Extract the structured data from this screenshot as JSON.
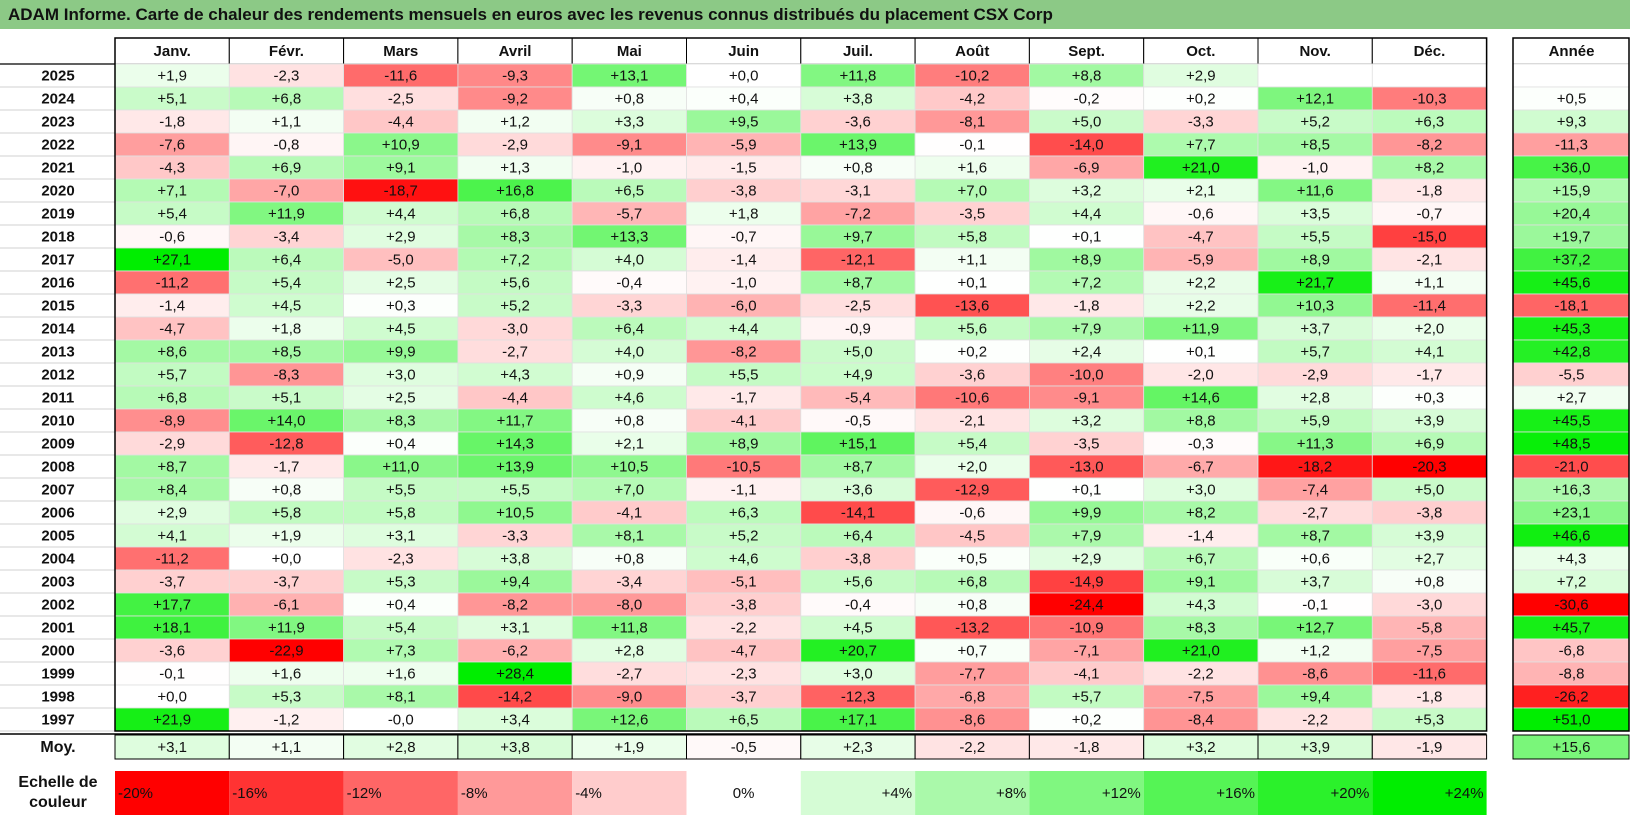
{
  "title": "ADAM Informe. Carte de chaleur des rendements mensuels en euros avec les revenus connus distribués du placement CSX Corp",
  "chart_data": {
    "type": "heatmap",
    "months": [
      "Janv.",
      "Févr.",
      "Mars",
      "Avril",
      "Mai",
      "Juin",
      "Juil.",
      "Août",
      "Sept.",
      "Oct.",
      "Nov.",
      "Déc."
    ],
    "year_header": "Année",
    "avg_label": "Moy.",
    "legend_title": "Echelle de couleur",
    "rows": [
      {
        "year": "2025",
        "values": [
          "+1,9",
          "-2,3",
          "-11,6",
          "-9,3",
          "+13,1",
          "+0,0",
          "+11,8",
          "-10,2",
          "+8,8",
          "+2,9",
          "",
          ""
        ],
        "annual": ""
      },
      {
        "year": "2024",
        "values": [
          "+5,1",
          "+6,8",
          "-2,5",
          "-9,2",
          "+0,8",
          "+0,4",
          "+3,8",
          "-4,2",
          "-0,2",
          "+0,2",
          "+12,1",
          "-10,3"
        ],
        "annual": "+0,5"
      },
      {
        "year": "2023",
        "values": [
          "-1,8",
          "+1,1",
          "-4,4",
          "+1,2",
          "+3,3",
          "+9,5",
          "-3,6",
          "-8,1",
          "+5,0",
          "-3,3",
          "+5,2",
          "+6,3"
        ],
        "annual": "+9,3"
      },
      {
        "year": "2022",
        "values": [
          "-7,6",
          "-0,8",
          "+10,9",
          "-2,9",
          "-9,1",
          "-5,9",
          "+13,9",
          "-0,1",
          "-14,0",
          "+7,7",
          "+8,5",
          "-8,2"
        ],
        "annual": "-11,3"
      },
      {
        "year": "2021",
        "values": [
          "-4,3",
          "+6,9",
          "+9,1",
          "+1,3",
          "-1,0",
          "-1,5",
          "+0,8",
          "+1,6",
          "-6,9",
          "+21,0",
          "-1,0",
          "+8,2"
        ],
        "annual": "+36,0"
      },
      {
        "year": "2020",
        "values": [
          "+7,1",
          "-7,0",
          "-18,7",
          "+16,8",
          "+6,5",
          "-3,8",
          "-3,1",
          "+7,0",
          "+3,2",
          "+2,1",
          "+11,6",
          "-1,8"
        ],
        "annual": "+15,9"
      },
      {
        "year": "2019",
        "values": [
          "+5,4",
          "+11,9",
          "+4,4",
          "+6,8",
          "-5,7",
          "+1,8",
          "-7,2",
          "-3,5",
          "+4,4",
          "-0,6",
          "+3,5",
          "-0,7"
        ],
        "annual": "+20,4"
      },
      {
        "year": "2018",
        "values": [
          "-0,6",
          "-3,4",
          "+2,9",
          "+8,3",
          "+13,3",
          "-0,7",
          "+9,7",
          "+5,8",
          "+0,1",
          "-4,7",
          "+5,5",
          "-15,0"
        ],
        "annual": "+19,7"
      },
      {
        "year": "2017",
        "values": [
          "+27,1",
          "+6,4",
          "-5,0",
          "+7,2",
          "+4,0",
          "-1,4",
          "-12,1",
          "+1,1",
          "+8,9",
          "-5,9",
          "+8,9",
          "-2,1"
        ],
        "annual": "+37,2"
      },
      {
        "year": "2016",
        "values": [
          "-11,2",
          "+5,4",
          "+2,5",
          "+5,6",
          "-0,4",
          "-1,0",
          "+8,7",
          "+0,1",
          "+7,2",
          "+2,2",
          "+21,7",
          "+1,1"
        ],
        "annual": "+45,6"
      },
      {
        "year": "2015",
        "values": [
          "-1,4",
          "+4,5",
          "+0,3",
          "+5,2",
          "-3,3",
          "-6,0",
          "-2,5",
          "-13,6",
          "-1,8",
          "+2,2",
          "+10,3",
          "-11,4"
        ],
        "annual": "-18,1"
      },
      {
        "year": "2014",
        "values": [
          "-4,7",
          "+1,8",
          "+4,5",
          "-3,0",
          "+6,4",
          "+4,4",
          "-0,9",
          "+5,6",
          "+7,9",
          "+11,9",
          "+3,7",
          "+2,0"
        ],
        "annual": "+45,3"
      },
      {
        "year": "2013",
        "values": [
          "+8,6",
          "+8,5",
          "+9,9",
          "-2,7",
          "+4,0",
          "-8,2",
          "+5,0",
          "+0,2",
          "+2,4",
          "+0,1",
          "+5,7",
          "+4,1"
        ],
        "annual": "+42,8"
      },
      {
        "year": "2012",
        "values": [
          "+5,7",
          "-8,3",
          "+3,0",
          "+4,3",
          "+0,9",
          "+5,5",
          "+4,9",
          "-3,6",
          "-10,0",
          "-2,0",
          "-2,9",
          "-1,7"
        ],
        "annual": "-5,5"
      },
      {
        "year": "2011",
        "values": [
          "+6,8",
          "+5,1",
          "+2,5",
          "-4,4",
          "+4,6",
          "-1,7",
          "-5,4",
          "-10,6",
          "-9,1",
          "+14,6",
          "+2,8",
          "+0,3"
        ],
        "annual": "+2,7"
      },
      {
        "year": "2010",
        "values": [
          "-8,9",
          "+14,0",
          "+8,3",
          "+11,7",
          "+0,8",
          "-4,1",
          "-0,5",
          "-2,1",
          "+3,2",
          "+8,8",
          "+5,9",
          "+3,9"
        ],
        "annual": "+45,5"
      },
      {
        "year": "2009",
        "values": [
          "-2,9",
          "-12,8",
          "+0,4",
          "+14,3",
          "+2,1",
          "+8,9",
          "+15,1",
          "+5,4",
          "-3,5",
          "-0,3",
          "+11,3",
          "+6,9"
        ],
        "annual": "+48,5"
      },
      {
        "year": "2008",
        "values": [
          "+8,7",
          "-1,7",
          "+11,0",
          "+13,9",
          "+10,5",
          "-10,5",
          "+8,7",
          "+2,0",
          "-13,0",
          "-6,7",
          "-18,2",
          "-20,3"
        ],
        "annual": "-21,0"
      },
      {
        "year": "2007",
        "values": [
          "+8,4",
          "+0,8",
          "+5,5",
          "+5,5",
          "+7,0",
          "-1,1",
          "+3,6",
          "-12,9",
          "+0,1",
          "+3,0",
          "-7,4",
          "+5,0"
        ],
        "annual": "+16,3"
      },
      {
        "year": "2006",
        "values": [
          "+2,9",
          "+5,8",
          "+5,8",
          "+10,5",
          "-4,1",
          "+6,3",
          "-14,1",
          "-0,6",
          "+9,9",
          "+8,2",
          "-2,7",
          "-3,8"
        ],
        "annual": "+23,1"
      },
      {
        "year": "2005",
        "values": [
          "+4,1",
          "+1,9",
          "+3,1",
          "-3,3",
          "+8,1",
          "+5,2",
          "+6,4",
          "-4,5",
          "+7,9",
          "-1,4",
          "+8,7",
          "+3,9"
        ],
        "annual": "+46,6"
      },
      {
        "year": "2004",
        "values": [
          "-11,2",
          "+0,0",
          "-2,3",
          "+3,8",
          "+0,8",
          "+4,6",
          "-3,8",
          "+0,5",
          "+2,9",
          "+6,7",
          "+0,6",
          "+2,7"
        ],
        "annual": "+4,3"
      },
      {
        "year": "2003",
        "values": [
          "-3,7",
          "-3,7",
          "+5,3",
          "+9,4",
          "-3,4",
          "-5,1",
          "+5,6",
          "+6,8",
          "-14,9",
          "+9,1",
          "+3,7",
          "+0,8"
        ],
        "annual": "+7,2"
      },
      {
        "year": "2002",
        "values": [
          "+17,7",
          "-6,1",
          "+0,4",
          "-8,2",
          "-8,0",
          "-3,8",
          "-0,4",
          "+0,8",
          "-24,4",
          "+4,3",
          "-0,1",
          "-3,0"
        ],
        "annual": "-30,6"
      },
      {
        "year": "2001",
        "values": [
          "+18,1",
          "+11,9",
          "+5,4",
          "+3,1",
          "+11,8",
          "-2,2",
          "+4,5",
          "-13,2",
          "-10,9",
          "+8,3",
          "+12,7",
          "-5,8"
        ],
        "annual": "+45,7"
      },
      {
        "year": "2000",
        "values": [
          "-3,6",
          "-22,9",
          "+7,3",
          "-6,2",
          "+2,8",
          "-4,7",
          "+20,7",
          "+0,7",
          "-7,1",
          "+21,0",
          "+1,2",
          "-7,5"
        ],
        "annual": "-6,8"
      },
      {
        "year": "1999",
        "values": [
          "-0,1",
          "+1,6",
          "+1,6",
          "+28,4",
          "-2,7",
          "-2,3",
          "+3,0",
          "-7,7",
          "-4,1",
          "-2,2",
          "-8,6",
          "-11,6"
        ],
        "annual": "-8,8"
      },
      {
        "year": "1998",
        "values": [
          "+0,0",
          "+5,3",
          "+8,1",
          "-14,2",
          "-9,0",
          "-3,7",
          "-12,3",
          "-6,8",
          "+5,7",
          "-7,5",
          "+9,4",
          "-1,8"
        ],
        "annual": "-26,2"
      },
      {
        "year": "1997",
        "values": [
          "+21,9",
          "-1,2",
          "-0,0",
          "+3,4",
          "+12,6",
          "+6,5",
          "+17,1",
          "-8,6",
          "+0,2",
          "-8,4",
          "-2,2",
          "+5,3"
        ],
        "annual": "+51,0"
      }
    ],
    "averages": [
      "+3,1",
      "+1,1",
      "+2,8",
      "+3,8",
      "+1,9",
      "-0,5",
      "+2,3",
      "-2,2",
      "-1,8",
      "+3,2",
      "+3,9",
      "-1,9"
    ],
    "average_annual": "+15,6",
    "legend": [
      {
        "label": "-20%",
        "value": -20
      },
      {
        "label": "-16%",
        "value": -16
      },
      {
        "label": "-12%",
        "value": -12
      },
      {
        "label": "-8%",
        "value": -8
      },
      {
        "label": "-4%",
        "value": -4
      },
      {
        "label": "0%",
        "value": 0
      },
      {
        "label": "+4%",
        "value": 4
      },
      {
        "label": "+8%",
        "value": 8
      },
      {
        "label": "+12%",
        "value": 12
      },
      {
        "label": "+16%",
        "value": 16
      },
      {
        "label": "+20%",
        "value": 20
      },
      {
        "label": "+24%",
        "value": 24
      }
    ],
    "color_scale": {
      "negative_max": "#ff0000",
      "positive_max": "#00ee00",
      "neutral": "#ffffff",
      "negative_limit": -20,
      "positive_limit": 24,
      "annual_limit": 50
    }
  }
}
